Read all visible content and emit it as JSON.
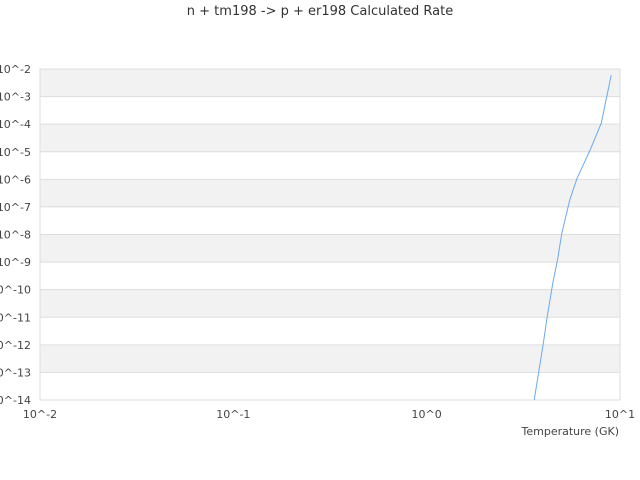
{
  "chart_data": {
    "type": "line",
    "title": "n + tm198 -> p + er198 Calculated Rate",
    "xlabel": "Temperature (GK)",
    "ylabel": "",
    "xscale": "log",
    "yscale": "log",
    "xlim": [
      0.01,
      10
    ],
    "ylim": [
      1e-14,
      0.01
    ],
    "x_ticks": [
      "10^-2",
      "10^-1",
      "10^0",
      "10^1"
    ],
    "y_ticks": [
      "10^-2",
      "10^-3",
      "10^-4",
      "10^-5",
      "10^-6",
      "10^-7",
      "10^-8",
      "10^-9",
      "10^-10",
      "10^-11",
      "10^-12",
      "10^-13",
      "10^-14"
    ],
    "grid": "horizontal alternating bands",
    "line_color": "#6aa9f0",
    "series": [
      {
        "x": [
          3.6,
          4.0,
          4.2,
          4.5,
          4.75,
          5.0,
          5.5,
          6.0,
          7.0,
          8.0,
          9.0
        ],
        "y": [
          1e-14,
          1e-12,
          1.05e-11,
          1.9e-10,
          1.2e-09,
          1.1e-08,
          1.8e-07,
          1.1e-06,
          1.15e-05,
          0.00011,
          0.006
        ]
      }
    ]
  }
}
